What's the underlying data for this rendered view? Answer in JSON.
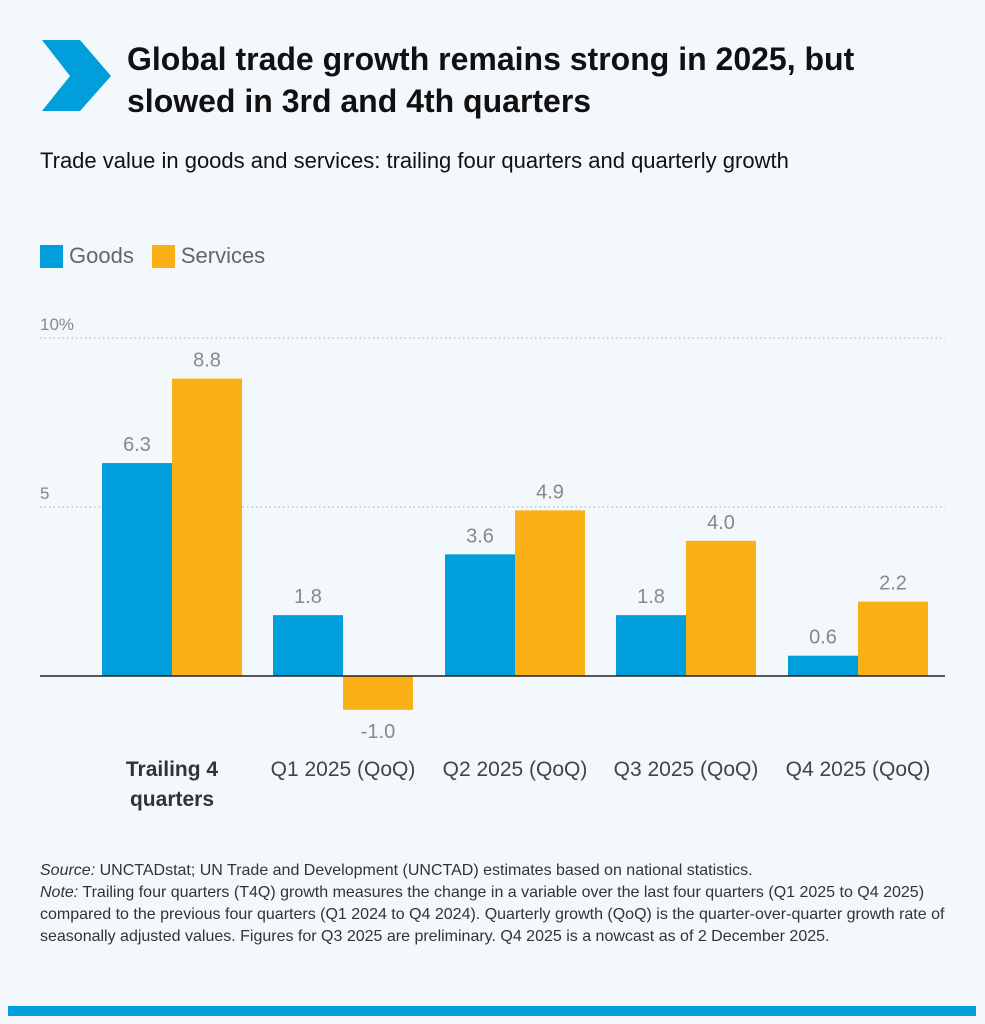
{
  "title": "Global trade growth remains strong in 2025, but slowed in 3rd and 4th quarters",
  "colors": {
    "goods": "#009edb",
    "services": "#fbaf17",
    "accent": "#009edb"
  },
  "chart_data": {
    "type": "bar",
    "title": "Trade value in goods and services: trailing four quarters and quarterly growth",
    "categories": [
      "Trailing 4 quarters",
      "Q1 2025 (QoQ)",
      "Q2 2025 (QoQ)",
      "Q3 2025 (QoQ)",
      "Q4 2025 (QoQ)"
    ],
    "series": [
      {
        "name": "Goods",
        "values": [
          6.3,
          1.8,
          3.6,
          1.8,
          0.6
        ]
      },
      {
        "name": "Services",
        "values": [
          8.8,
          -1.0,
          4.9,
          4.0,
          2.2
        ]
      }
    ],
    "value_labels": {
      "Goods": [
        "6.3",
        "1.8",
        "3.6",
        "1.8",
        "0.6"
      ],
      "Services": [
        "8.8",
        "-1.0",
        "4.9",
        "4.0",
        "2.2"
      ]
    },
    "yticks": [
      {
        "value": 5,
        "label": "5"
      },
      {
        "value": 10,
        "label": "10%"
      }
    ],
    "ylim": [
      -1.5,
      10
    ],
    "grid": "dotted horizontal",
    "legend": "top-left",
    "xlabel": "",
    "ylabel": ""
  },
  "notes": {
    "source_label": "Source:",
    "source_text": " UNCTADstat; UN Trade and Development (UNCTAD) estimates based on national statistics.",
    "note_label": "Note:",
    "note_text": " Trailing four quarters (T4Q) growth measures the change in a variable over the last four quarters (Q1 2025 to Q4 2025) compared to the previous four quarters (Q1 2024 to Q4 2024). Quarterly growth (QoQ) is the quarter-over-quarter growth rate of seasonally adjusted values. Figures for Q3 2025 are preliminary. Q4 2025 is a nowcast as of 2 December 2025."
  }
}
